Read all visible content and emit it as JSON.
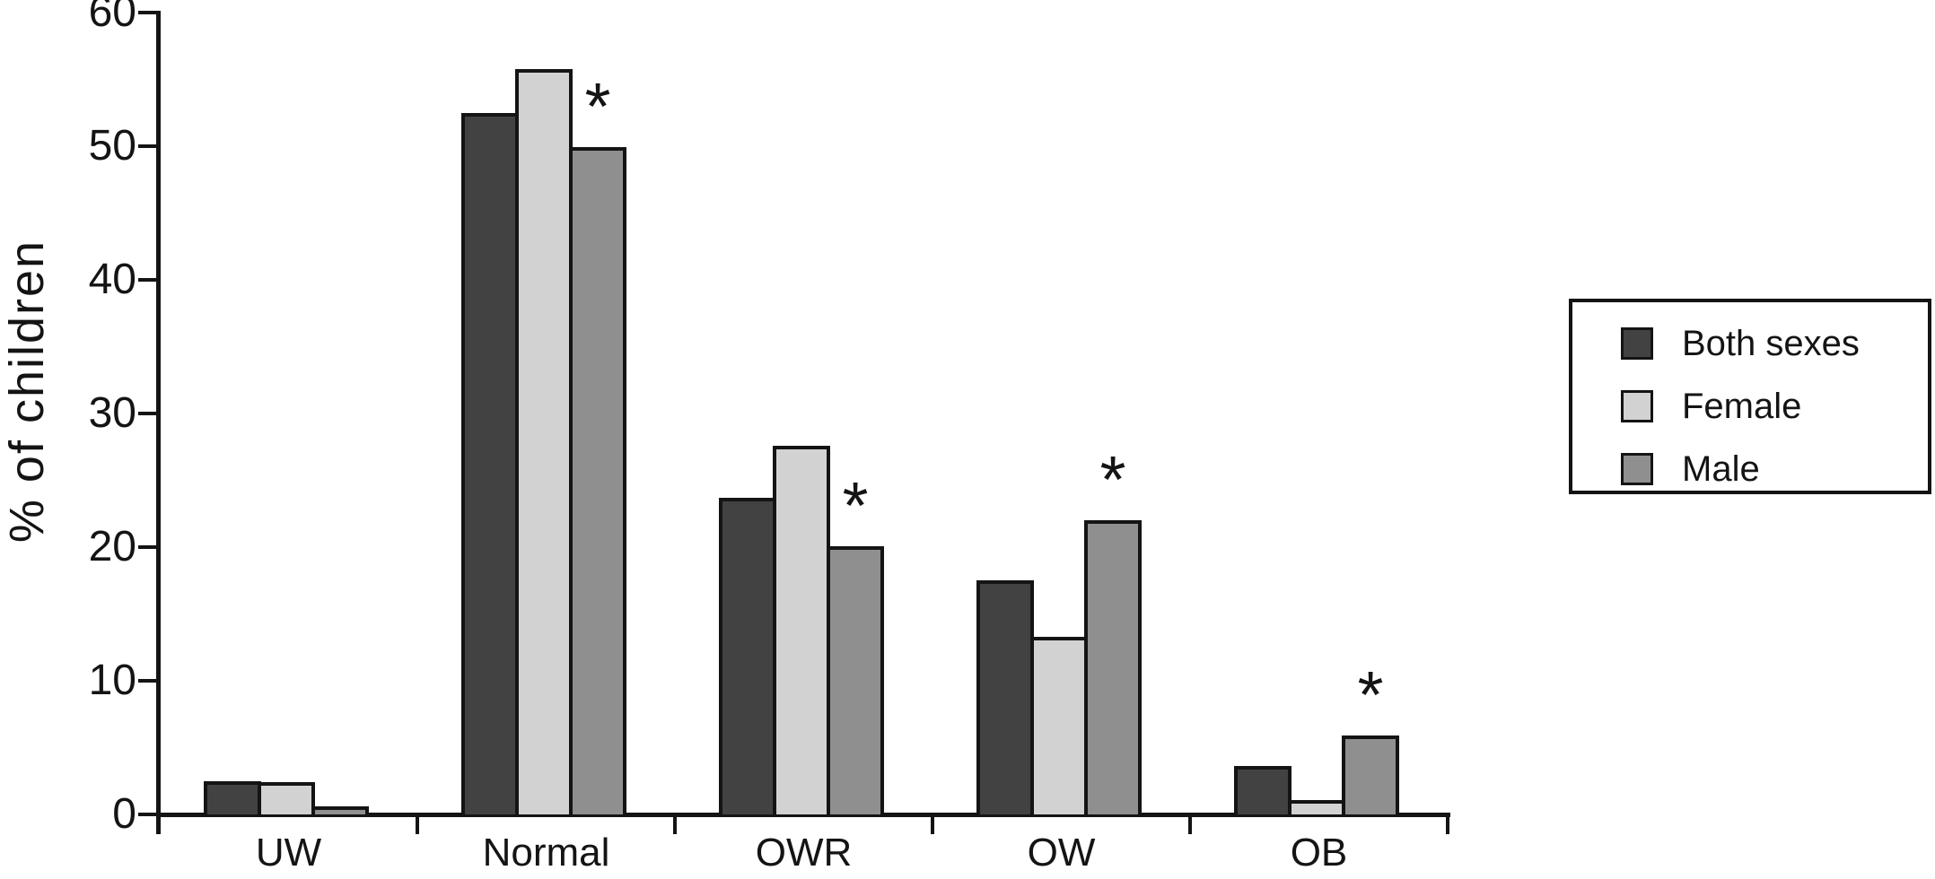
{
  "chart_data": {
    "type": "bar",
    "title": "",
    "xlabel": "",
    "ylabel": "% of children",
    "ylim": [
      0,
      60
    ],
    "yticks": [
      0,
      10,
      20,
      30,
      40,
      50,
      60
    ],
    "grid": false,
    "legend_position": "right-outside",
    "categories": [
      "UW",
      "Normal",
      "OWR",
      "OW",
      "OB"
    ],
    "series": [
      {
        "name": "Both sexes",
        "color": "#424242",
        "values": [
          2.5,
          52.5,
          23.7,
          17.5,
          3.6
        ],
        "annotations": [
          "",
          "",
          "",
          "",
          ""
        ]
      },
      {
        "name": "Female",
        "color": "#d2d2d2",
        "values": [
          2.4,
          55.8,
          27.6,
          13.3,
          1.1
        ],
        "annotations": [
          "",
          "",
          "",
          "",
          ""
        ]
      },
      {
        "name": "Male",
        "color": "#8f8f8f",
        "values": [
          0.6,
          49.9,
          20.1,
          22.0,
          5.9
        ],
        "annotations": [
          "",
          "*",
          "*",
          "*",
          "*"
        ]
      }
    ]
  }
}
